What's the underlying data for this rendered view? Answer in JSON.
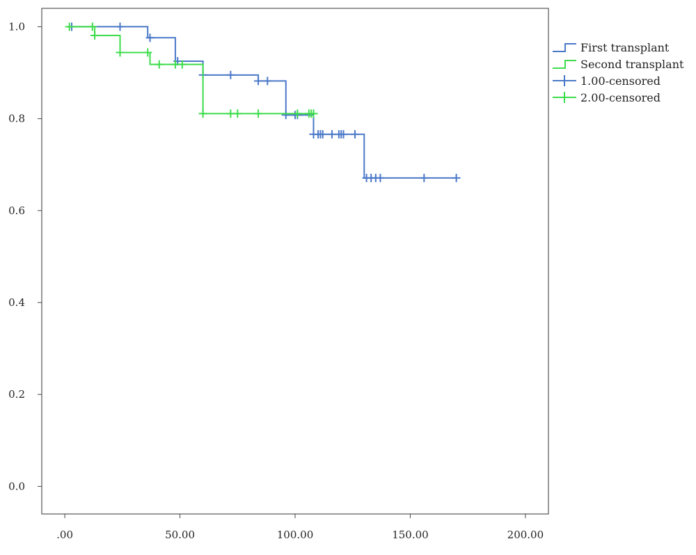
{
  "chart_data": {
    "type": "line",
    "subtype": "kaplan-meier step",
    "title": "",
    "xlabel": "",
    "ylabel": "",
    "xlim": [
      -10,
      210
    ],
    "ylim": [
      -0.06,
      1.04
    ],
    "x_ticks": [
      {
        "value": 0,
        "label": ".00"
      },
      {
        "value": 50,
        "label": "50.00"
      },
      {
        "value": 100,
        "label": "100.00"
      },
      {
        "value": 150,
        "label": "150.00"
      },
      {
        "value": 200,
        "label": "200.00"
      }
    ],
    "y_ticks": [
      {
        "value": 0.0,
        "label": "0.0"
      },
      {
        "value": 0.2,
        "label": "0.2"
      },
      {
        "value": 0.4,
        "label": "0.4"
      },
      {
        "value": 0.6,
        "label": "0.6"
      },
      {
        "value": 0.8,
        "label": "0.8"
      },
      {
        "value": 1.0,
        "label": "1.0"
      }
    ],
    "grid": false,
    "legend_position": "right",
    "legend": [
      {
        "label": "First transplant",
        "symbol": "step",
        "color": "#4a78c8"
      },
      {
        "label": "Second transplant",
        "symbol": "step",
        "color": "#3ddc4a"
      },
      {
        "label": "1.00-censored",
        "symbol": "plus",
        "color": "#4a78c8"
      },
      {
        "label": "2.00-censored",
        "symbol": "plus",
        "color": "#3ddc4a"
      }
    ],
    "series": [
      {
        "name": "First transplant",
        "color": "#4a78c8",
        "steps": [
          [
            2,
            1.0
          ],
          [
            36,
            0.976
          ],
          [
            48,
            0.925
          ],
          [
            60,
            0.895
          ],
          [
            84,
            0.882
          ],
          [
            96,
            0.808
          ],
          [
            108,
            0.766
          ],
          [
            130,
            0.671
          ],
          [
            170,
            0.671
          ]
        ],
        "censored": [
          [
            3,
            1.0
          ],
          [
            24,
            1.0
          ],
          [
            37,
            0.976
          ],
          [
            49,
            0.925
          ],
          [
            60,
            0.895
          ],
          [
            72,
            0.895
          ],
          [
            84,
            0.882
          ],
          [
            88,
            0.882
          ],
          [
            96,
            0.808
          ],
          [
            100,
            0.808
          ],
          [
            101,
            0.808
          ],
          [
            108,
            0.766
          ],
          [
            110,
            0.766
          ],
          [
            111,
            0.766
          ],
          [
            112,
            0.766
          ],
          [
            116,
            0.766
          ],
          [
            119,
            0.766
          ],
          [
            120,
            0.766
          ],
          [
            121,
            0.766
          ],
          [
            126,
            0.766
          ],
          [
            131,
            0.671
          ],
          [
            133,
            0.671
          ],
          [
            135,
            0.671
          ],
          [
            137,
            0.671
          ],
          [
            156,
            0.671
          ],
          [
            170,
            0.671
          ]
        ]
      },
      {
        "name": "Second transplant",
        "color": "#3ddc4a",
        "steps": [
          [
            2,
            1.0
          ],
          [
            13,
            0.981
          ],
          [
            24,
            0.944
          ],
          [
            37,
            0.918
          ],
          [
            60,
            0.811
          ],
          [
            108,
            0.811
          ]
        ],
        "censored": [
          [
            2,
            1.0
          ],
          [
            12,
            1.0
          ],
          [
            13,
            0.981
          ],
          [
            24,
            0.944
          ],
          [
            36,
            0.944
          ],
          [
            41,
            0.918
          ],
          [
            48,
            0.918
          ],
          [
            51,
            0.918
          ],
          [
            60,
            0.811
          ],
          [
            72,
            0.811
          ],
          [
            75,
            0.811
          ],
          [
            84,
            0.811
          ],
          [
            101,
            0.811
          ],
          [
            106,
            0.811
          ],
          [
            107,
            0.811
          ],
          [
            108,
            0.811
          ]
        ]
      }
    ]
  }
}
